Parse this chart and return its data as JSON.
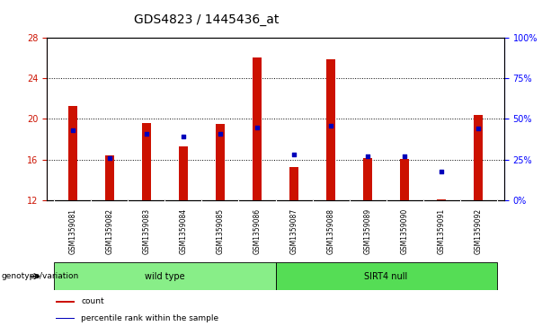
{
  "title": "GDS4823 / 1445436_at",
  "samples": [
    "GSM1359081",
    "GSM1359082",
    "GSM1359083",
    "GSM1359084",
    "GSM1359085",
    "GSM1359086",
    "GSM1359087",
    "GSM1359088",
    "GSM1359089",
    "GSM1359090",
    "GSM1359091",
    "GSM1359092"
  ],
  "counts": [
    21.3,
    16.4,
    19.6,
    17.3,
    19.5,
    26.0,
    15.3,
    25.9,
    16.2,
    16.1,
    12.1,
    20.4
  ],
  "percentile_ranks": [
    43,
    26,
    41,
    39,
    41,
    45,
    28,
    46,
    27,
    27,
    18,
    44
  ],
  "ylim_left": [
    12,
    28
  ],
  "ylim_right": [
    0,
    100
  ],
  "yticks_left": [
    12,
    16,
    20,
    24,
    28
  ],
  "ytick_labels_right": [
    "0%",
    "25%",
    "50%",
    "75%",
    "100%"
  ],
  "yticks_right": [
    0,
    25,
    50,
    75,
    100
  ],
  "bar_color": "#CC1100",
  "dot_color": "#0000BB",
  "bar_width": 0.25,
  "grid_lines": [
    16,
    20,
    24
  ],
  "groups": [
    {
      "label": "wild type",
      "indices": [
        0,
        1,
        2,
        3,
        4,
        5
      ],
      "color": "#88EE88"
    },
    {
      "label": "SIRT4 null",
      "indices": [
        6,
        7,
        8,
        9,
        10,
        11
      ],
      "color": "#55DD55"
    }
  ],
  "group_row_label": "genotype/variation",
  "legend_items": [
    {
      "label": "count",
      "color": "#CC1100"
    },
    {
      "label": "percentile rank within the sample",
      "color": "#0000BB"
    }
  ],
  "title_fontsize": 10,
  "tick_fontsize": 7,
  "sample_fontsize": 5.5,
  "group_fontsize": 7,
  "legend_fontsize": 6.5
}
